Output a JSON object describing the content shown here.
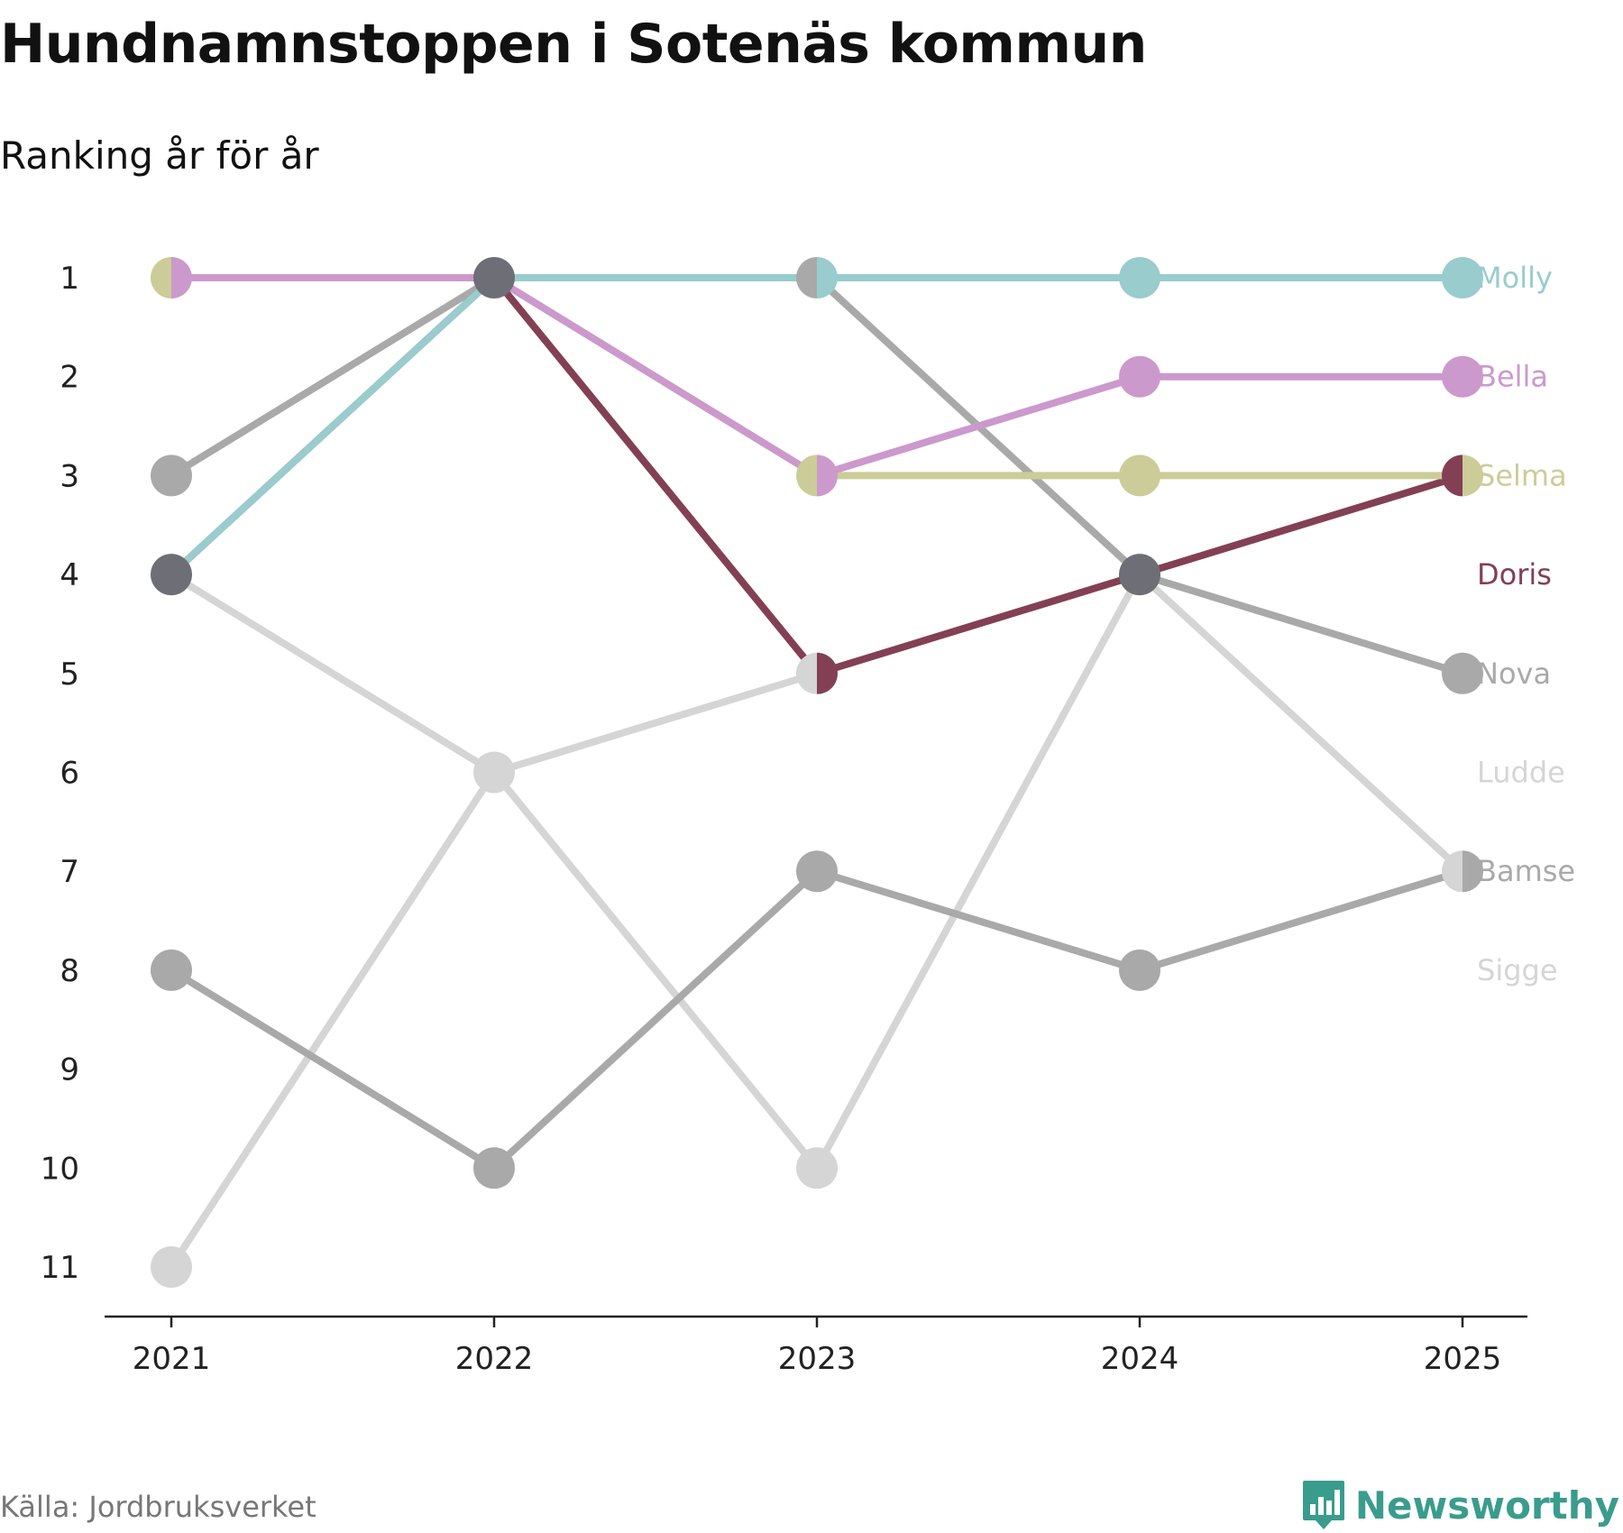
{
  "header": {
    "title": "Hundnamnstoppen i Sotenäs kommun",
    "subtitle": "Ranking år för år"
  },
  "footer": {
    "source": "Källa: Jordbruksverket",
    "brand": "Newsworthy",
    "brand_icon": "bar-chart-icon",
    "brand_color": "#3a9c8c"
  },
  "chart_data": {
    "type": "line",
    "title": "Hundnamnstoppen i Sotenäs kommun",
    "subtitle": "Ranking år för år",
    "xlabel": "",
    "ylabel": "",
    "x": [
      "2021",
      "2022",
      "2023",
      "2024",
      "2025"
    ],
    "y_ticks": [
      "1",
      "2",
      "3",
      "4",
      "5",
      "6",
      "7",
      "8",
      "9",
      "10",
      "11"
    ],
    "ylim": [
      1,
      11
    ],
    "y_inverted": true,
    "grid": false,
    "legend": "direct labels at right",
    "series": [
      {
        "name": "Sigge",
        "color": "#d5d5d5",
        "values": [
          11,
          6,
          10,
          4,
          7
        ]
      },
      {
        "name": "Ludde",
        "color": "#d5d5d5",
        "values": [
          4,
          6,
          5,
          null,
          null
        ]
      },
      {
        "name": "Bamse",
        "color": "#a9a9a9",
        "values": [
          8,
          10,
          7,
          8,
          7
        ]
      },
      {
        "name": "Nova",
        "color": "#a9a9a9",
        "values": [
          3,
          1,
          1,
          4,
          5
        ]
      },
      {
        "name": "Doris",
        "color": "#834055",
        "values": [
          4,
          1,
          5,
          4,
          3
        ]
      },
      {
        "name": "Selma",
        "color": "#cccc99",
        "values": [
          1,
          1,
          3,
          3,
          3
        ]
      },
      {
        "name": "Bella",
        "color": "#cc99cc",
        "values": [
          1,
          1,
          3,
          2,
          2
        ]
      },
      {
        "name": "Molly",
        "color": "#99cccc",
        "values": [
          4,
          1,
          1,
          1,
          1
        ]
      }
    ],
    "labels_order": [
      "Molly",
      "Bella",
      "Selma",
      "Doris",
      "Nova",
      "Ludde",
      "Bamse",
      "Sigge"
    ]
  }
}
